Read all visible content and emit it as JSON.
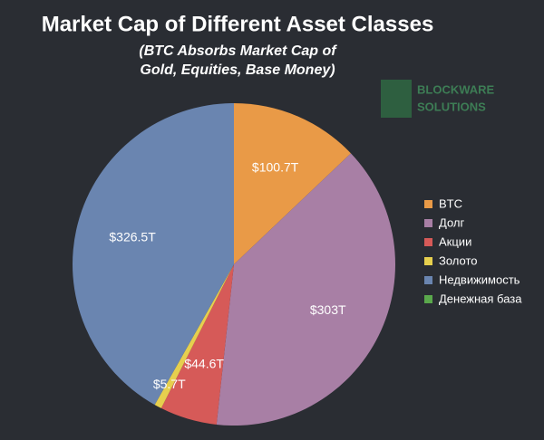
{
  "chart_data": {
    "type": "pie",
    "title": "Market Cap of Different Asset Classes",
    "subtitle": [
      "(BTC Absorbs Market Cap of",
      "Gold, Equities, Base Money)"
    ],
    "watermark": [
      "BLOCKWARE",
      "SOLUTIONS"
    ],
    "categories": [
      "BTC",
      "Долг",
      "Акции",
      "Золото",
      "Недвижимость",
      "Денежная база"
    ],
    "values": [
      100.7,
      303,
      44.6,
      5.7,
      326.5,
      0
    ],
    "value_labels": [
      "$100.7T",
      "$303T",
      "$44.6T",
      "$5.7T",
      "$326.5T",
      null
    ],
    "colors": [
      "#e99a47",
      "#a87fa5",
      "#d65a58",
      "#e6cf4e",
      "#6a85b0",
      "#5aa84c"
    ],
    "legend": "right"
  }
}
